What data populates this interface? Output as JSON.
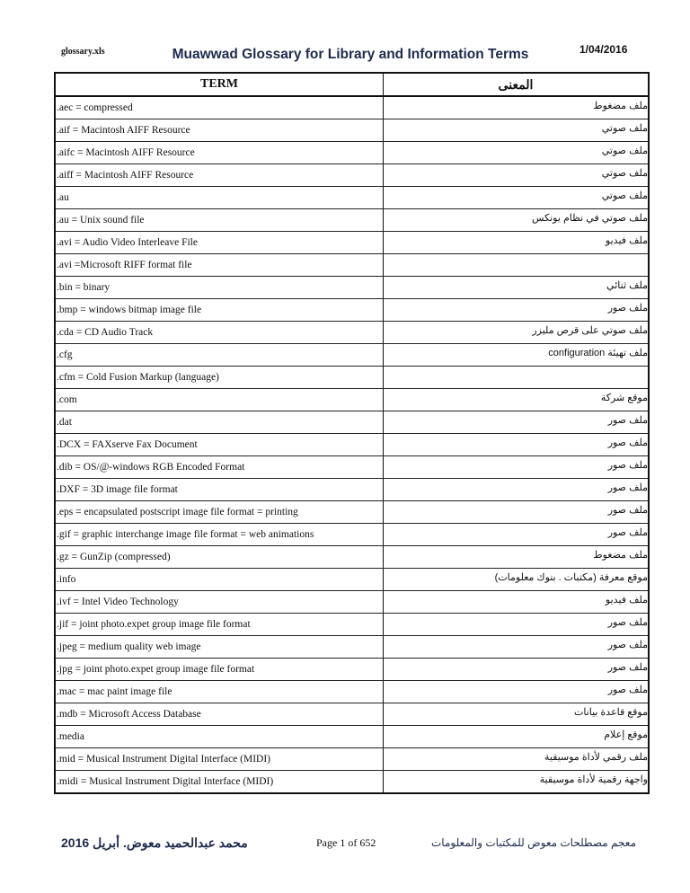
{
  "header": {
    "filename": "glossary.xls",
    "title": "Muawwad Glossary for Library and Information Terms",
    "date": "1/04/2016"
  },
  "table": {
    "columns": [
      "TERM",
      "المعنى"
    ],
    "rows": [
      {
        "term": ".aec = compressed",
        "meaning": "ملف مضغوط"
      },
      {
        "term": ".aif = Macintosh AIFF Resource",
        "meaning": "ملف صوتي"
      },
      {
        "term": ".aifc = Macintosh AIFF Resource",
        "meaning": "ملف صوتي"
      },
      {
        "term": ".aiff = Macintosh AIFF Resource",
        "meaning": "ملف صوتي"
      },
      {
        "term": ".au",
        "meaning": "ملف صوتي"
      },
      {
        "term": ".au = Unix sound file",
        "meaning": "ملف صوتي في نظام يونكس"
      },
      {
        "term": ".avi = Audio Video Interleave File",
        "meaning": "ملف فيديو"
      },
      {
        "term": ".avi =Microsoft RIFF format file",
        "meaning": ""
      },
      {
        "term": ".bin = binary",
        "meaning": "ملف ثنائي"
      },
      {
        "term": ".bmp = windows bitmap image file",
        "meaning": "ملف صور"
      },
      {
        "term": ".cda = CD Audio Track",
        "meaning": "ملف صوتي  على قرص مليزر"
      },
      {
        "term": ".cfg",
        "meaning": "ملف تهيئة   configuration"
      },
      {
        "term": ".cfm = Cold Fusion Markup (language)",
        "meaning": ""
      },
      {
        "term": ".com",
        "meaning": "موقع شركة"
      },
      {
        "term": ".dat",
        "meaning": "ملف صور"
      },
      {
        "term": ".DCX = FAXserve Fax Document",
        "meaning": "ملف صور"
      },
      {
        "term": ".dib =  OS/@-windows RGB Encoded Format",
        "meaning": "ملف صور"
      },
      {
        "term": ".DXF = 3D image file format",
        "meaning": "ملف صور"
      },
      {
        "term": ".eps = encapsulated postscript image file format = printing",
        "meaning": "ملف صور"
      },
      {
        "term": ".gif = graphic interchange image file format = web animations",
        "meaning": "ملف صور"
      },
      {
        "term": ".gz = GunZip (compressed)",
        "meaning": "ملف مضغوط"
      },
      {
        "term": ".info",
        "meaning": "موقع معرفة (مكتبات . بنوك معلومات)"
      },
      {
        "term": ".ivf = Intel Video Technology",
        "meaning": "ملف فيديو"
      },
      {
        "term": ".jif  = joint photo.expet group image file format",
        "meaning": "ملف صور"
      },
      {
        "term": ".jpeg = medium quality web image",
        "meaning": "ملف صور"
      },
      {
        "term": ".jpg  = joint photo.expet group image file format",
        "meaning": "ملف صور"
      },
      {
        "term": ".mac = mac paint image file",
        "meaning": "ملف صور"
      },
      {
        "term": ".mdb = Microsoft Access Database",
        "meaning": "موقع قاعدة بيانات"
      },
      {
        "term": ".media",
        "meaning": "موقع إعلام"
      },
      {
        "term": ".mid = Musical Instrument Digital Interface (MIDI)",
        "meaning": "ملف رقمي لأداة موسيقية"
      },
      {
        "term": ".midi  = Musical Instrument Digital Interface (MIDI)",
        "meaning": "واجهة رقمية لأداة موسيقية"
      }
    ]
  },
  "footer": {
    "author": "محمد عبدالحميد معوض. أبريل 2016",
    "page": "Page 1 of 652",
    "book": "معجم مصطلحات معوض للمكتبات والمعلومات"
  }
}
